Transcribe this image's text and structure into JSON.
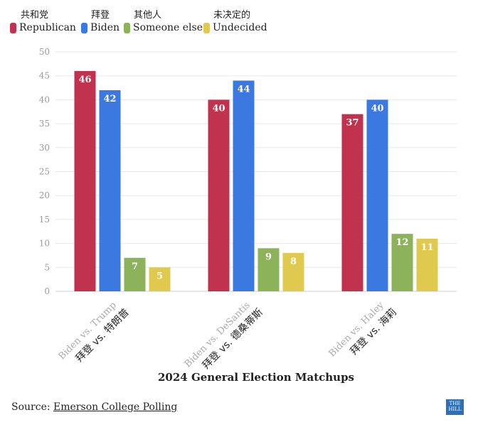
{
  "legend": [
    {
      "cn": "共和党",
      "en": "Republican",
      "color": "#c0324d"
    },
    {
      "cn": "拜登",
      "en": "Biden",
      "color": "#3b78e0"
    },
    {
      "cn": "其他人",
      "en": "Someone else",
      "color": "#8db35a"
    },
    {
      "cn": "未决定的",
      "en": "Undecided",
      "color": "#e0c94f"
    }
  ],
  "chart_data": {
    "type": "bar",
    "title": "",
    "xlabel": "2024 General Election Matchups",
    "ylabel": "",
    "ylim": [
      0,
      50
    ],
    "yticks": [
      0,
      5,
      10,
      15,
      20,
      25,
      30,
      35,
      40,
      45,
      50
    ],
    "grid": true,
    "legend_position": "top-left",
    "categories": [
      "Biden vs. Trump",
      "Biden vs. DeSantis",
      "Biden vs. Haley"
    ],
    "categories_cn": [
      "拜登 vs. 特朗普",
      "拜登 vs. 德桑蒂斯",
      "拜登 vs. 海莉"
    ],
    "series": [
      {
        "name": "Republican",
        "color": "#c0324d",
        "values": [
          46,
          40,
          37
        ]
      },
      {
        "name": "Biden",
        "color": "#3b78e0",
        "values": [
          42,
          44,
          40
        ]
      },
      {
        "name": "Someone else",
        "color": "#8db35a",
        "values": [
          7,
          9,
          12
        ]
      },
      {
        "name": "Undecided",
        "color": "#e0c94f",
        "values": [
          5,
          8,
          11
        ]
      }
    ]
  },
  "source": {
    "prefix": "Source: ",
    "link": "Emerson College Polling"
  },
  "logo": {
    "line1": "THE",
    "line2": "HILL"
  }
}
